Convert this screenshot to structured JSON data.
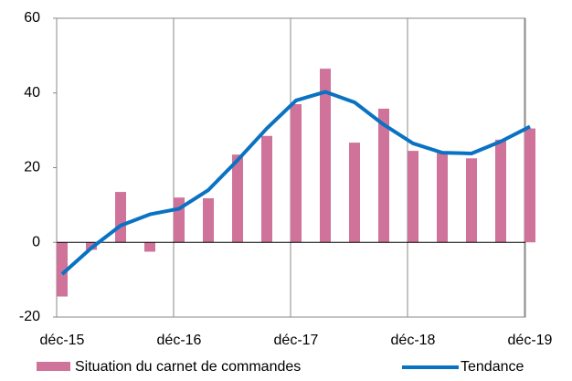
{
  "chart_data": {
    "type": "bar_line",
    "categories": [
      "déc-15",
      null,
      null,
      null,
      "déc-16",
      null,
      null,
      null,
      "déc-17",
      null,
      null,
      null,
      "déc-18",
      null,
      null,
      null,
      "déc-19"
    ],
    "series": [
      {
        "name": "Situation du carnet de commandes",
        "type": "bar",
        "color": "#d0739b",
        "values": [
          -14.5,
          -2,
          13.5,
          -2.5,
          12,
          11.8,
          23.5,
          28.5,
          37,
          46.5,
          26.7,
          35.8,
          24.5,
          24,
          22.5,
          27.5,
          30.5
        ]
      },
      {
        "name": "Tendance",
        "type": "line",
        "color": "#0a72c2",
        "values": [
          -8.5,
          -1.5,
          4.5,
          7.5,
          9,
          14,
          22,
          30.5,
          38,
          40.3,
          37.5,
          31.5,
          26.5,
          24,
          23.8,
          27,
          31
        ]
      }
    ],
    "ylim": [
      -20,
      60
    ],
    "yticks": [
      -20,
      0,
      20,
      40,
      60
    ],
    "legend": "bottom"
  }
}
